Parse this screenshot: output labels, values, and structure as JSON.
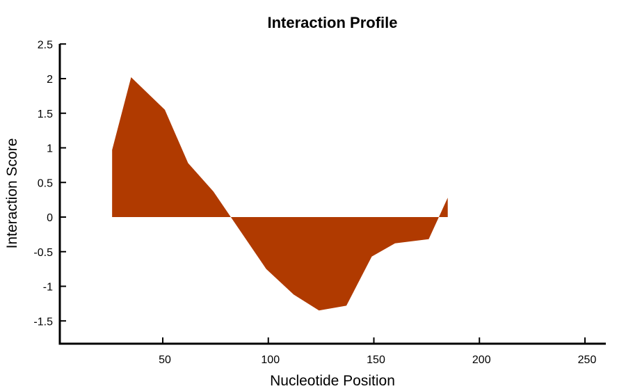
{
  "chart_data": {
    "type": "area",
    "title": "Interaction Profile",
    "xlabel": "Nucleotide Position",
    "ylabel": "Interaction Score",
    "xlim": [
      1,
      260
    ],
    "ylim": [
      -1.83,
      2.5
    ],
    "xticks": [
      50,
      100,
      150,
      200,
      250
    ],
    "yticks": [
      2.5,
      2,
      1.5,
      1,
      0.5,
      0,
      -0.5,
      -1,
      -1.5
    ],
    "ytick_labels": [
      "2.5",
      "2",
      "1.5",
      "1",
      "0.5",
      "0",
      "-0.5",
      "-1",
      "-1.5"
    ],
    "xtick_labels": [
      "50",
      "100",
      "150",
      "200",
      "250"
    ],
    "grid": false,
    "legend": null,
    "fill_color": "#B03A00",
    "baseline": 0,
    "x": [
      26,
      35,
      51,
      62,
      74,
      99,
      112,
      124,
      137,
      149,
      160,
      176,
      185
    ],
    "values": [
      0.97,
      2.02,
      1.55,
      0.78,
      0.37,
      -0.75,
      -1.12,
      -1.35,
      -1.28,
      -0.57,
      -0.38,
      -0.32,
      0.28
    ]
  }
}
